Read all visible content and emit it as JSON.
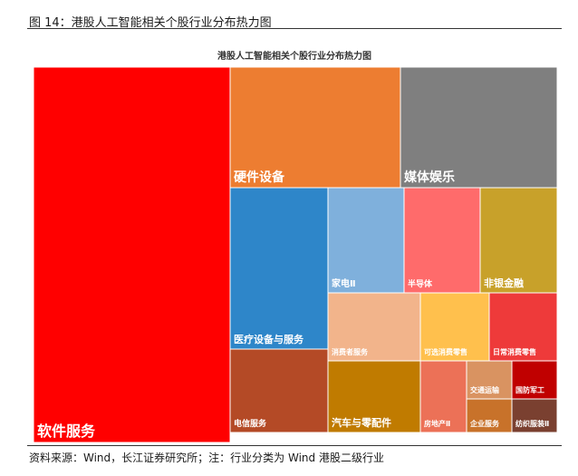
{
  "figure": {
    "title": "图 14：港股人工智能相关个股行业分布热力图",
    "source_note": "资料来源：Wind，长江证券研究所；注：行业分类为 Wind 港股二级行业"
  },
  "chart_data": {
    "type": "treemap",
    "title": "港股人工智能相关个股行业分布热力图",
    "items": [
      {
        "label": "软件服务",
        "color": "#ff0000"
      },
      {
        "label": "硬件设备",
        "color": "#ed7d31"
      },
      {
        "label": "媒体娱乐",
        "color": "#7f7f7f"
      },
      {
        "label": "医疗设备与服务",
        "color": "#2e86c9"
      },
      {
        "label": "家电Ⅱ",
        "color": "#7fb0dc"
      },
      {
        "label": "半导体",
        "color": "#ff6b6b"
      },
      {
        "label": "非银金融",
        "color": "#c8a12a"
      },
      {
        "label": "消费者服务",
        "color": "#f2b48b"
      },
      {
        "label": "可选消费零售",
        "color": "#ffc04d"
      },
      {
        "label": "日常消费零售",
        "color": "#ee3a3a"
      },
      {
        "label": "电信服务",
        "color": "#b44a26"
      },
      {
        "label": "汽车与零配件",
        "color": "#c07b00"
      },
      {
        "label": "房地产Ⅱ",
        "color": "#ec7157"
      },
      {
        "label": "交通运输",
        "color": "#d99361"
      },
      {
        "label": "国防军工",
        "color": "#c00000"
      },
      {
        "label": "企业服务",
        "color": "#c8722a"
      },
      {
        "label": "纺织服装Ⅱ",
        "color": "#7a4030"
      }
    ]
  }
}
